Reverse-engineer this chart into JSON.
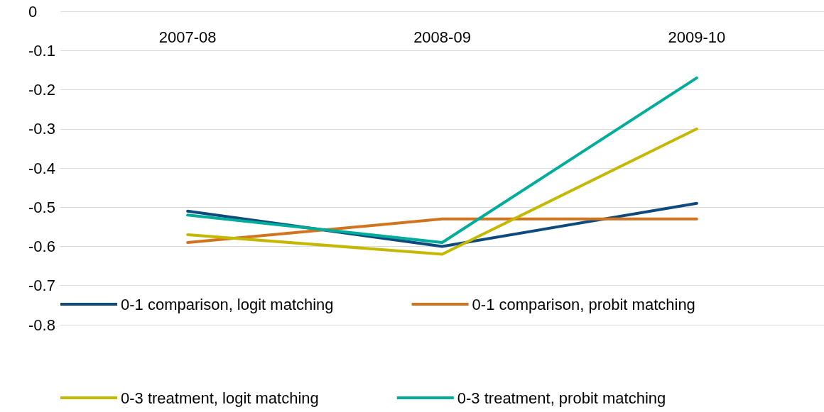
{
  "chart_data": {
    "type": "line",
    "categories": [
      "2007-08",
      "2008-09",
      "2009-10"
    ],
    "series": [
      {
        "name": "0-1 comparison, logit matching",
        "color": "#0e4a7d",
        "values": [
          -0.51,
          -0.6,
          -0.49
        ]
      },
      {
        "name": "0-1 comparison, probit matching",
        "color": "#d2731e",
        "values": [
          -0.59,
          -0.53,
          -0.53
        ]
      },
      {
        "name": "0-3 treatment, logit matching",
        "color": "#c4b800",
        "values": [
          -0.57,
          -0.62,
          -0.3
        ]
      },
      {
        "name": "0-3 treatment, probit matching",
        "color": "#00ac9a",
        "values": [
          -0.52,
          -0.59,
          -0.17
        ]
      }
    ],
    "ylim": [
      -0.8,
      0
    ],
    "yticks": [
      0,
      -0.1,
      -0.2,
      -0.3,
      -0.4,
      -0.5,
      -0.6,
      -0.7,
      -0.8
    ],
    "grid": "y",
    "legend": "bottom",
    "marker": "none",
    "line_style": "solid"
  }
}
